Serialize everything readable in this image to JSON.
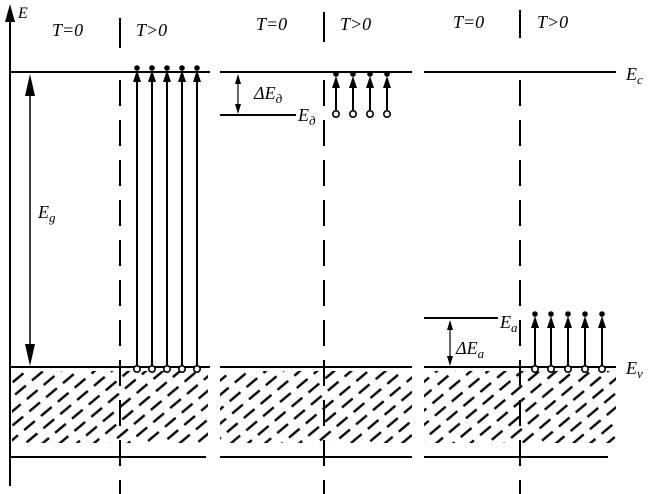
{
  "axis": {
    "label": "E"
  },
  "panels": [
    {
      "id": "intrinsic",
      "header_left": "T=0",
      "header_right": "T>0",
      "gap_label": {
        "main": "E",
        "sub": "g"
      }
    },
    {
      "id": "donor",
      "header_left": "T=0",
      "header_right": "T>0",
      "delta_label": {
        "prefix": "ΔE",
        "sub": "д"
      },
      "level_label": {
        "main": "E",
        "sub": "д"
      }
    },
    {
      "id": "acceptor",
      "header_left": "T=0",
      "header_right": "T>0",
      "delta_label": {
        "prefix": "ΔE",
        "sub": "a"
      },
      "level_label": {
        "main": "E",
        "sub": "a"
      }
    }
  ],
  "band_labels": {
    "conduction": {
      "main": "E",
      "sub": "c"
    },
    "valence": {
      "main": "E",
      "sub": "v"
    }
  },
  "colors": {
    "ink": "#000000",
    "background": "#ffffff"
  }
}
